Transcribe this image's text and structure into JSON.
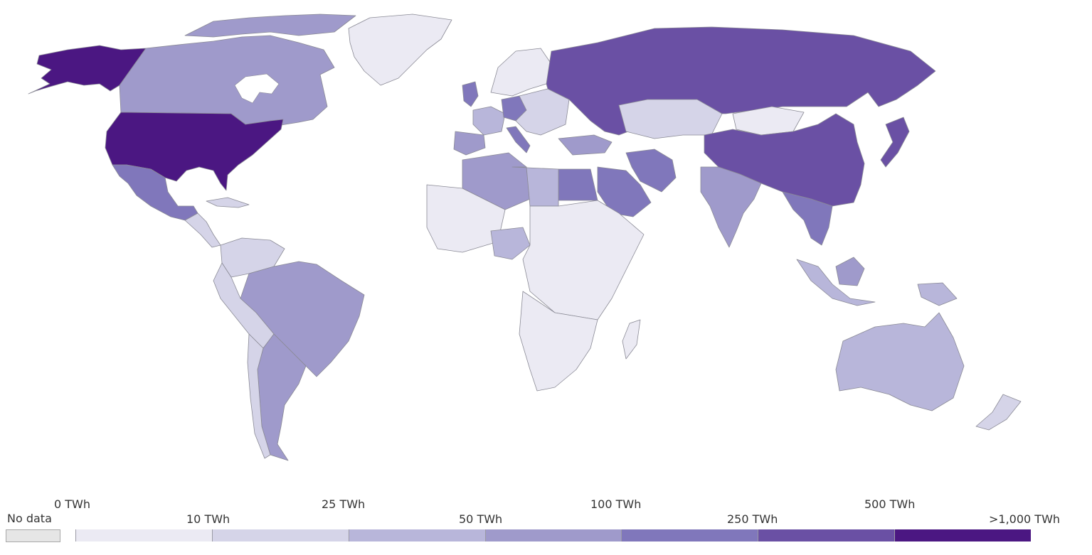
{
  "legend": {
    "no_data_label": "No data",
    "no_data_color": "#e6e6e6",
    "bins": [
      {
        "color": "#ebeaf3"
      },
      {
        "color": "#d5d4e8"
      },
      {
        "color": "#b8b6da"
      },
      {
        "color": "#9f9acb"
      },
      {
        "color": "#8077bb"
      },
      {
        "color": "#6a50a4"
      },
      {
        "color": "#4b1782"
      }
    ],
    "tick_labels": [
      "0 TWh",
      "10 TWh",
      "25 TWh",
      "50 TWh",
      "100 TWh",
      "250 TWh",
      "500 TWh",
      ">1,000 TWh"
    ]
  },
  "colors": {
    "c0": "#ebeaf3",
    "c1": "#d5d4e8",
    "c2": "#b8b6da",
    "c3": "#9f9acb",
    "c4": "#8077bb",
    "c5": "#6a50a4",
    "c6": "#4b1782",
    "nodata": "#e6e6e6"
  }
}
